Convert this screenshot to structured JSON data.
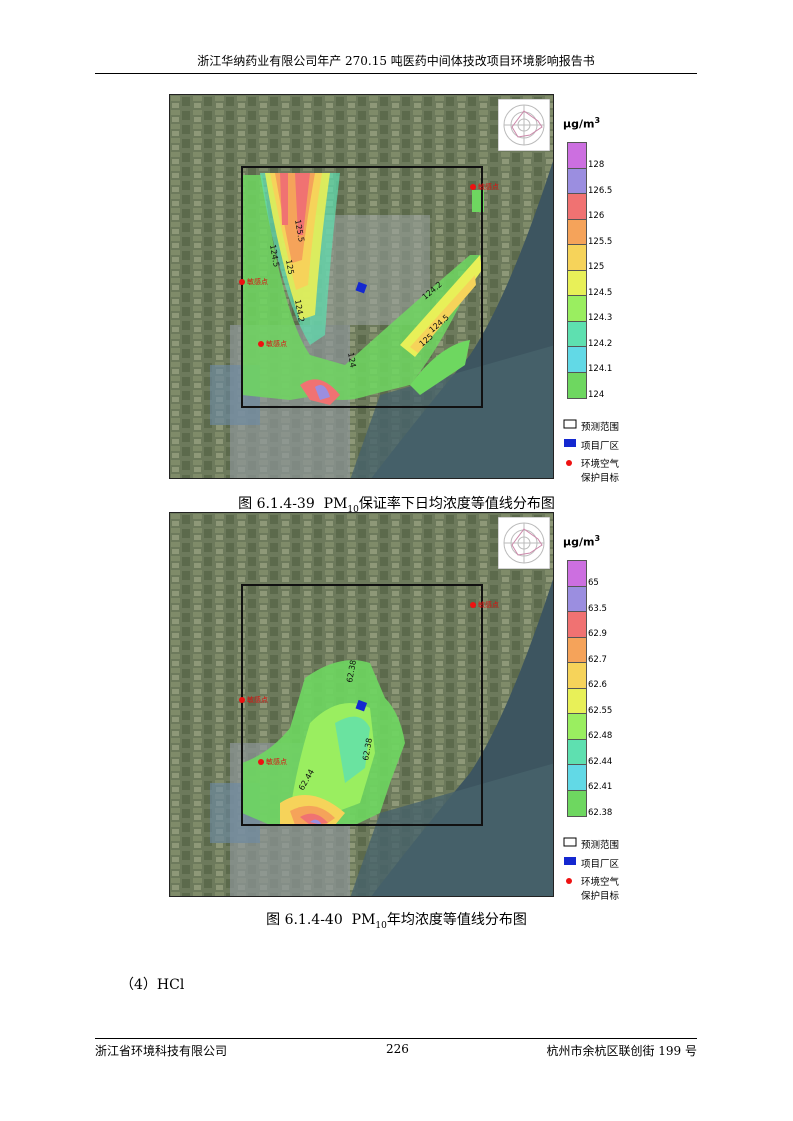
{
  "header": {
    "title": "浙江华纳药业有限公司年产 270.15 吨医药中间体技改项目环境影响报告书"
  },
  "figure1": {
    "unit_label": "μg/m",
    "unit_sup": "3",
    "scale_values": [
      "128",
      "126.5",
      "126",
      "125.5",
      "125",
      "124.5",
      "124.3",
      "124.2",
      "124.1",
      "124"
    ],
    "scale_colors": [
      "#cc6fe0",
      "#9b8ee0",
      "#f07272",
      "#f5a35a",
      "#f6d35a",
      "#e8f058",
      "#9aee60",
      "#5ee0b0",
      "#62d9e6",
      "#6ed760"
    ],
    "contour_labels": [
      "125.5",
      "124.5",
      "125",
      "124.2",
      "124.2",
      "124.5",
      "124",
      "125"
    ],
    "sensitive_points": [
      "敏感点",
      "敏感点",
      "敏感点"
    ],
    "caption_prefix": "图 6.1.4-39",
    "caption_pm": "PM",
    "caption_sub": "10",
    "caption_suffix": "保证率下日均浓度等值线分布图"
  },
  "figure2": {
    "unit_label": "μg/m",
    "unit_sup": "3",
    "scale_values": [
      "65",
      "63.5",
      "62.9",
      "62.7",
      "62.6",
      "62.55",
      "62.48",
      "62.44",
      "62.41",
      "62.38"
    ],
    "scale_colors": [
      "#cc6fe0",
      "#9b8ee0",
      "#f07272",
      "#f5a35a",
      "#f6d35a",
      "#e8f058",
      "#9aee60",
      "#5ee0b0",
      "#62d9e6",
      "#6ed760"
    ],
    "contour_labels": [
      "62.38",
      "62.38",
      "62.44"
    ],
    "sensitive_points": [
      "敏感点",
      "敏感点",
      "敏感点"
    ],
    "caption_prefix": "图 6.1.4-40",
    "caption_pm": "PM",
    "caption_sub": "10",
    "caption_suffix": "年均浓度等值线分布图"
  },
  "legend_keys": {
    "range": "预测范围",
    "site": "项目厂区",
    "target_line1": "环境空气",
    "target_line2": "保护目标"
  },
  "section": "（4）HCl",
  "footer": {
    "company": "浙江省环境科技有限公司",
    "page": "226",
    "address": "杭州市余杭区联创街 199 号"
  }
}
